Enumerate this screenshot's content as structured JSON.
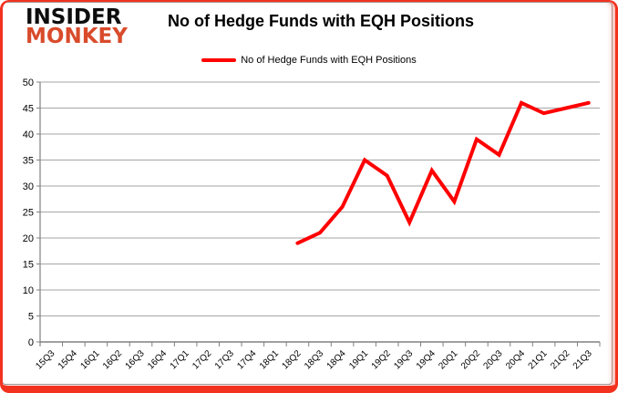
{
  "logo": {
    "line1": "INSIDER",
    "line2": "MONKEY"
  },
  "header": {
    "title": "No of Hedge Funds with EQH Positions"
  },
  "legend": {
    "label": "No of Hedge Funds with EQH Positions",
    "swatch_color": "#ff0000"
  },
  "colors": {
    "series_line": "#ff0000",
    "gridline": "#a6a6a6",
    "axis": "#808080",
    "label_text": "#000000",
    "logo_primary": "#0d0d0d",
    "logo_accent": "#d94b2b",
    "frame_red": "#f2321f"
  },
  "chart_data": {
    "type": "line",
    "title": "No of Hedge Funds with EQH Positions",
    "categories": [
      "15Q3",
      "15Q4",
      "16Q1",
      "16Q2",
      "16Q3",
      "16Q4",
      "17Q1",
      "17Q2",
      "17Q3",
      "17Q4",
      "18Q1",
      "18Q2",
      "18Q3",
      "18Q4",
      "19Q1",
      "19Q2",
      "19Q3",
      "19Q4",
      "20Q1",
      "20Q2",
      "20Q3",
      "20Q4",
      "21Q1",
      "21Q2",
      "21Q3"
    ],
    "series": [
      {
        "name": "No of Hedge Funds with EQH Positions",
        "color": "#ff0000",
        "values": [
          null,
          null,
          null,
          null,
          null,
          null,
          null,
          null,
          null,
          null,
          null,
          19,
          21,
          26,
          35,
          32,
          23,
          33,
          27,
          39,
          36,
          46,
          44,
          45,
          46
        ]
      }
    ],
    "xlabel": "",
    "ylabel": "",
    "ylim": [
      0,
      50
    ],
    "ytick_interval": 5,
    "grid": true,
    "legend_position": "top"
  }
}
